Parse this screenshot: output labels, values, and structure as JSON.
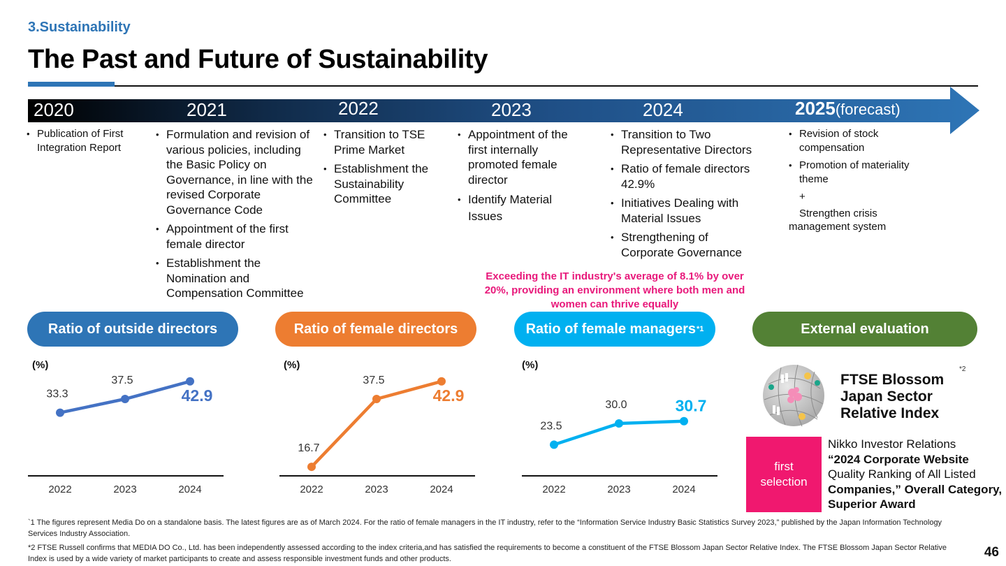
{
  "header": {
    "section": "3.Sustainability",
    "title": "The Past and Future of Sustainability"
  },
  "timeline": {
    "years": [
      {
        "label": "2020",
        "suffix": ""
      },
      {
        "label": "2021",
        "suffix": ""
      },
      {
        "label": "2022",
        "suffix": ""
      },
      {
        "label": "2023",
        "suffix": ""
      },
      {
        "label": "2024",
        "suffix": ""
      },
      {
        "label": "2025",
        "suffix": "(forecast)"
      }
    ],
    "columns": [
      {
        "items": [
          "Publication of First Integration Report"
        ]
      },
      {
        "items": [
          "Formulation and revision of various policies, including the Basic Policy on Governance, in line with the revised Corporate Governance Code",
          "Appointment of the first female director",
          "Establishment the Nomination and Compensation Committee"
        ]
      },
      {
        "items": [
          "Transition to TSE Prime Market",
          "Establishment the Sustainability Committee"
        ]
      },
      {
        "items": [
          "Appointment of the first internally promoted female director",
          "Identify Material Issues"
        ]
      },
      {
        "items": [
          "Transition to Two Representative Directors",
          "Ratio of female directors 42.9%",
          "Initiatives Dealing with Material Issues",
          "Strengthening of Corporate Governance"
        ]
      },
      {
        "items": [
          "Revision of stock compensation",
          "Promotion of materiality theme"
        ],
        "plus": "+",
        "extra_line1": "Strengthen crisis",
        "extra_line2": "management system"
      }
    ]
  },
  "callout": "Exceeding the IT industry's average of 8.1% by over 20%, providing an environment where both men and women can thrive equally",
  "pills": {
    "outside": "Ratio of outside directors",
    "female_directors": "Ratio of female directors",
    "female_managers": "Ratio of female managers",
    "female_managers_note": "*1",
    "external": "External evaluation"
  },
  "colors": {
    "outside": "#4472c4",
    "outside_pill": "#2e75b6",
    "female_directors": "#ed7d31",
    "female_managers": "#00b0f0",
    "external": "#538135",
    "accent_pink": "#f0186f"
  },
  "chart_data": [
    {
      "type": "line",
      "title": "Ratio of outside directors",
      "ylabel": "(%)",
      "categories": [
        "2022",
        "2023",
        "2024"
      ],
      "values": [
        33.3,
        37.5,
        42.9
      ],
      "labels": [
        "33.3",
        "37.5",
        "42.9"
      ],
      "highlight_last": true
    },
    {
      "type": "line",
      "title": "Ratio of female directors",
      "ylabel": "(%)",
      "categories": [
        "2022",
        "2023",
        "2024"
      ],
      "values": [
        16.7,
        37.5,
        42.9
      ],
      "labels": [
        "16.7",
        "37.5",
        "42.9"
      ],
      "highlight_last": true
    },
    {
      "type": "line",
      "title": "Ratio of female managers",
      "ylabel": "(%)",
      "categories": [
        "2022",
        "2023",
        "2024"
      ],
      "values": [
        23.5,
        30.0,
        30.7
      ],
      "labels": [
        "23.5",
        "30.0",
        "30.7"
      ],
      "highlight_last": true
    }
  ],
  "external": {
    "ftse_line1": "FTSE Blossom",
    "ftse_line2": "Japan Sector",
    "ftse_line3": "Relative Index",
    "ftse_note": "*2",
    "first_selection_line1": "first",
    "first_selection_line2": "selection",
    "award_plain1": "Nikko Investor Relations",
    "award_bold1": "“2024 Corporate Website",
    "award_plain2": "Quality Ranking of All Listed",
    "award_bold2": "Companies,” Overall Category, Superior Award"
  },
  "footnotes": [
    "`1  The figures represent Media Do on a standalone basis. The latest figures are as of March 2024. For the ratio of female managers in the IT industry, refer to the “Information Service Industry Basic Statistics Survey 2023,” published by the Japan Information Technology Services Industry Association.",
    "*2  FTSE Russell confirms that MEDIA DO Co., Ltd. has been independently assessed according to the index criteria,and has satisfied the requirements to become a constituent of the FTSE Blossom Japan Sector Relative Index. The FTSE Blossom Japan Sector Relative Index is used by a wide variety of market participants to create and assess responsible investment funds and other products."
  ],
  "page_number": "46"
}
